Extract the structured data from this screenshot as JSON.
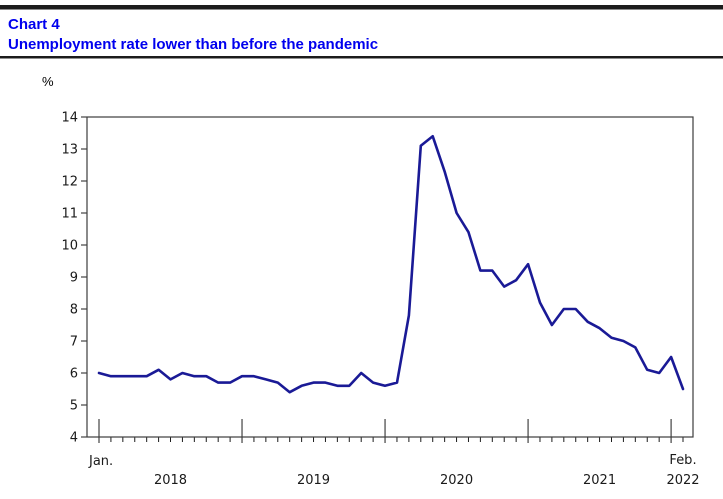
{
  "colors": {
    "title_text": "#0000ee",
    "line": "#1a1a96",
    "frame": "#3d3d3d",
    "tick": "#1c1c1c",
    "label_text": "#1a1a1a"
  },
  "header": {
    "chart_label": "Chart 4",
    "title": "Unemployment rate lower than before the pandemic"
  },
  "chart_data": {
    "type": "line",
    "title": "Chart 4",
    "subtitle": "Unemployment rate lower than before the pandemic",
    "ylabel": "%",
    "xlabel": "",
    "ylim": [
      4,
      14
    ],
    "y_ticks": [
      4,
      5,
      6,
      7,
      8,
      9,
      10,
      11,
      12,
      13,
      14
    ],
    "grid": "off",
    "legend_position": "none",
    "x_axis": {
      "start_label": "Jan.",
      "end_label": "Feb.",
      "year_labels": [
        "2018",
        "2019",
        "2020",
        "2021",
        "2022"
      ]
    },
    "series": [
      {
        "name": "Unemployment rate (%)",
        "months": [
          "2018-01",
          "2018-02",
          "2018-03",
          "2018-04",
          "2018-05",
          "2018-06",
          "2018-07",
          "2018-08",
          "2018-09",
          "2018-10",
          "2018-11",
          "2018-12",
          "2019-01",
          "2019-02",
          "2019-03",
          "2019-04",
          "2019-05",
          "2019-06",
          "2019-07",
          "2019-08",
          "2019-09",
          "2019-10",
          "2019-11",
          "2019-12",
          "2020-01",
          "2020-02",
          "2020-03",
          "2020-04",
          "2020-05",
          "2020-06",
          "2020-07",
          "2020-08",
          "2020-09",
          "2020-10",
          "2020-11",
          "2020-12",
          "2021-01",
          "2021-02",
          "2021-03",
          "2021-04",
          "2021-05",
          "2021-06",
          "2021-07",
          "2021-08",
          "2021-09",
          "2021-10",
          "2021-11",
          "2021-12",
          "2022-01",
          "2022-02"
        ],
        "values": [
          6.0,
          5.9,
          5.9,
          5.9,
          5.9,
          6.1,
          5.8,
          6.0,
          5.9,
          5.9,
          5.7,
          5.7,
          5.9,
          5.9,
          5.8,
          5.7,
          5.4,
          5.6,
          5.7,
          5.7,
          5.6,
          5.6,
          6.0,
          5.7,
          5.6,
          5.7,
          7.8,
          13.1,
          13.4,
          12.3,
          11.0,
          10.4,
          9.2,
          9.2,
          8.7,
          8.9,
          9.4,
          8.2,
          7.5,
          8.0,
          8.0,
          7.6,
          7.4,
          7.1,
          7.0,
          6.8,
          6.1,
          6.0,
          6.5,
          5.5
        ]
      }
    ]
  }
}
